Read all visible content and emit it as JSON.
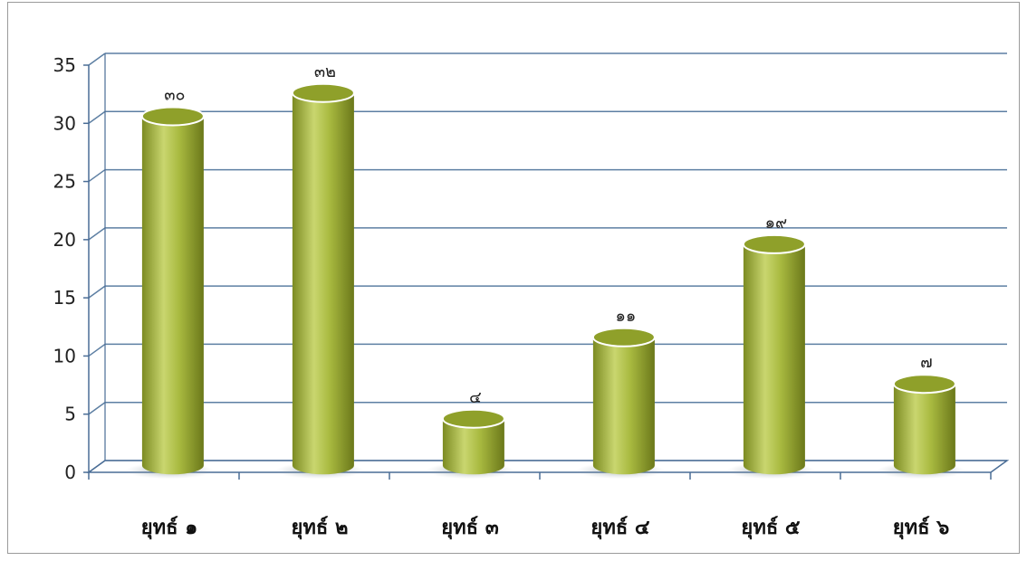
{
  "chart_data": {
    "type": "bar",
    "style": "3d-cylinder",
    "categories": [
      "ยุทธ์ ๑",
      "ยุทธ์ ๒",
      "ยุทธ์ ๓",
      "ยุทธ์ ๔",
      "ยุทธ์ ๕",
      "ยุทธ์ ๖"
    ],
    "values": [
      30,
      32,
      4,
      11,
      19,
      7
    ],
    "data_labels": [
      "๓๐",
      "๓๒",
      "๔",
      "๑๑",
      "๑๙",
      "๗"
    ],
    "yticks": [
      "0",
      "5",
      "10",
      "15",
      "20",
      "25",
      "30",
      "35"
    ],
    "ylim": [
      0,
      35
    ],
    "grid": true,
    "title": "",
    "xlabel": "",
    "ylabel": "",
    "colors": {
      "bar_light": "#c9d66f",
      "bar_mid": "#a4b53c",
      "bar_dark": "#6f7d1d",
      "bar_top": "#8fa02a",
      "grid": "#5d7fa3",
      "axis": "#4a6d96"
    }
  }
}
